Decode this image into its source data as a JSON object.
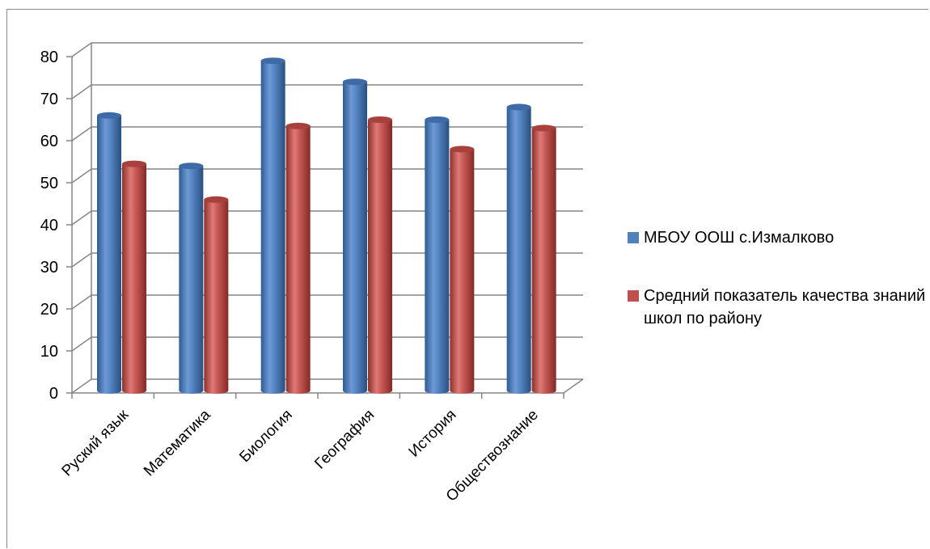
{
  "chart_data": {
    "type": "bar",
    "style": "3d-cylinder",
    "categories": [
      "Руский язык",
      "Математика",
      "Биология",
      "География",
      "История",
      "Обществознание"
    ],
    "series": [
      {
        "name": "МБОУ ООШ с.Измалково",
        "color": "#4f81bd",
        "values": [
          66,
          54,
          79,
          74,
          65,
          68
        ]
      },
      {
        "name": "Средний показатель качества знаний школ по району",
        "color": "#c0504d",
        "values": [
          54.5,
          46,
          63.5,
          65,
          58,
          63
        ]
      }
    ],
    "ylim": [
      0,
      80
    ],
    "yticks": [
      0,
      10,
      20,
      30,
      40,
      50,
      60,
      70,
      80
    ],
    "grid": true,
    "legend_position": "right",
    "title": "",
    "xlabel": "",
    "ylabel": ""
  }
}
